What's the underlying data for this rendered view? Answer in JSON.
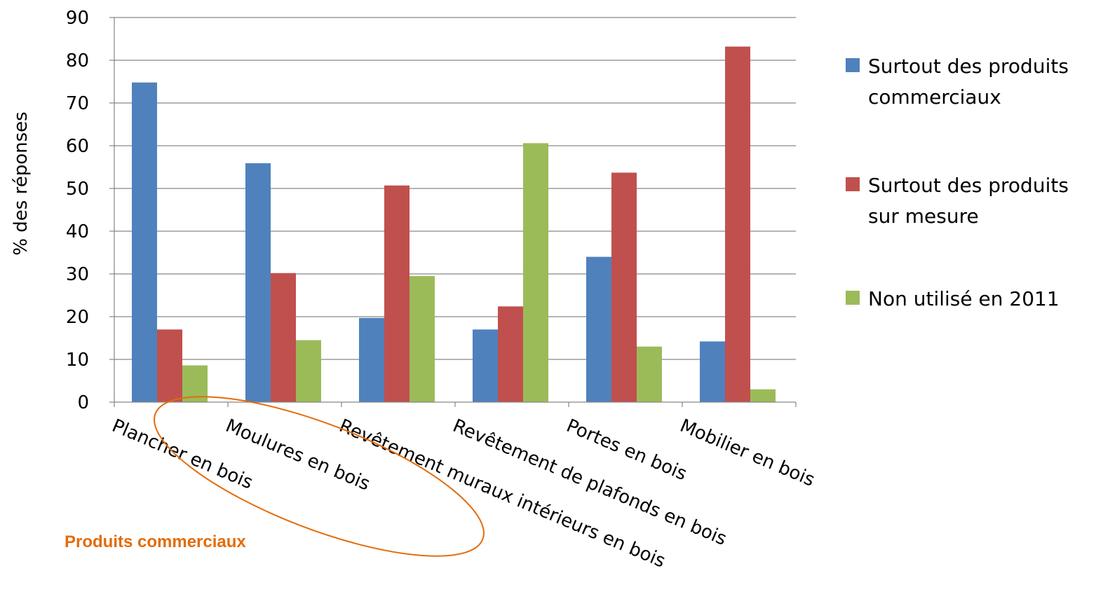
{
  "chart_data": {
    "type": "bar",
    "ylabel": "% des réponses",
    "ylim": [
      0,
      90
    ],
    "yticks": [
      0,
      10,
      20,
      30,
      40,
      50,
      60,
      70,
      80,
      90
    ],
    "grid": true,
    "legend_position": "right",
    "categories": [
      "Plancher en bois",
      "Moulures en bois",
      "Revêtement muraux intérieurs en bois",
      "Revêtement de plafonds en bois",
      "Portes en bois",
      "Mobilier en bois"
    ],
    "series": [
      {
        "name": "Surtout des produits commerciaux",
        "legend_lines": [
          "Surtout des produits",
          "commerciaux"
        ],
        "color": "#4F81BD",
        "values": [
          74.8,
          55.9,
          19.7,
          17.0,
          34.0,
          14.2
        ]
      },
      {
        "name": "Surtout des produits sur mesure",
        "legend_lines": [
          "Surtout des produits",
          "sur mesure"
        ],
        "color": "#C0504D",
        "values": [
          17.0,
          30.2,
          50.7,
          22.4,
          53.7,
          83.2
        ]
      },
      {
        "name": "Non utilisé en 2011",
        "legend_lines": [
          "Non utilisé en 2011"
        ],
        "color": "#9BBB59",
        "values": [
          8.6,
          14.5,
          29.5,
          60.6,
          13.0,
          3.0
        ]
      }
    ],
    "annotation": {
      "text": "Produits commerciaux",
      "color": "#E36C0A",
      "highlights_categories": [
        "Plancher en bois",
        "Moulures en bois"
      ]
    }
  }
}
